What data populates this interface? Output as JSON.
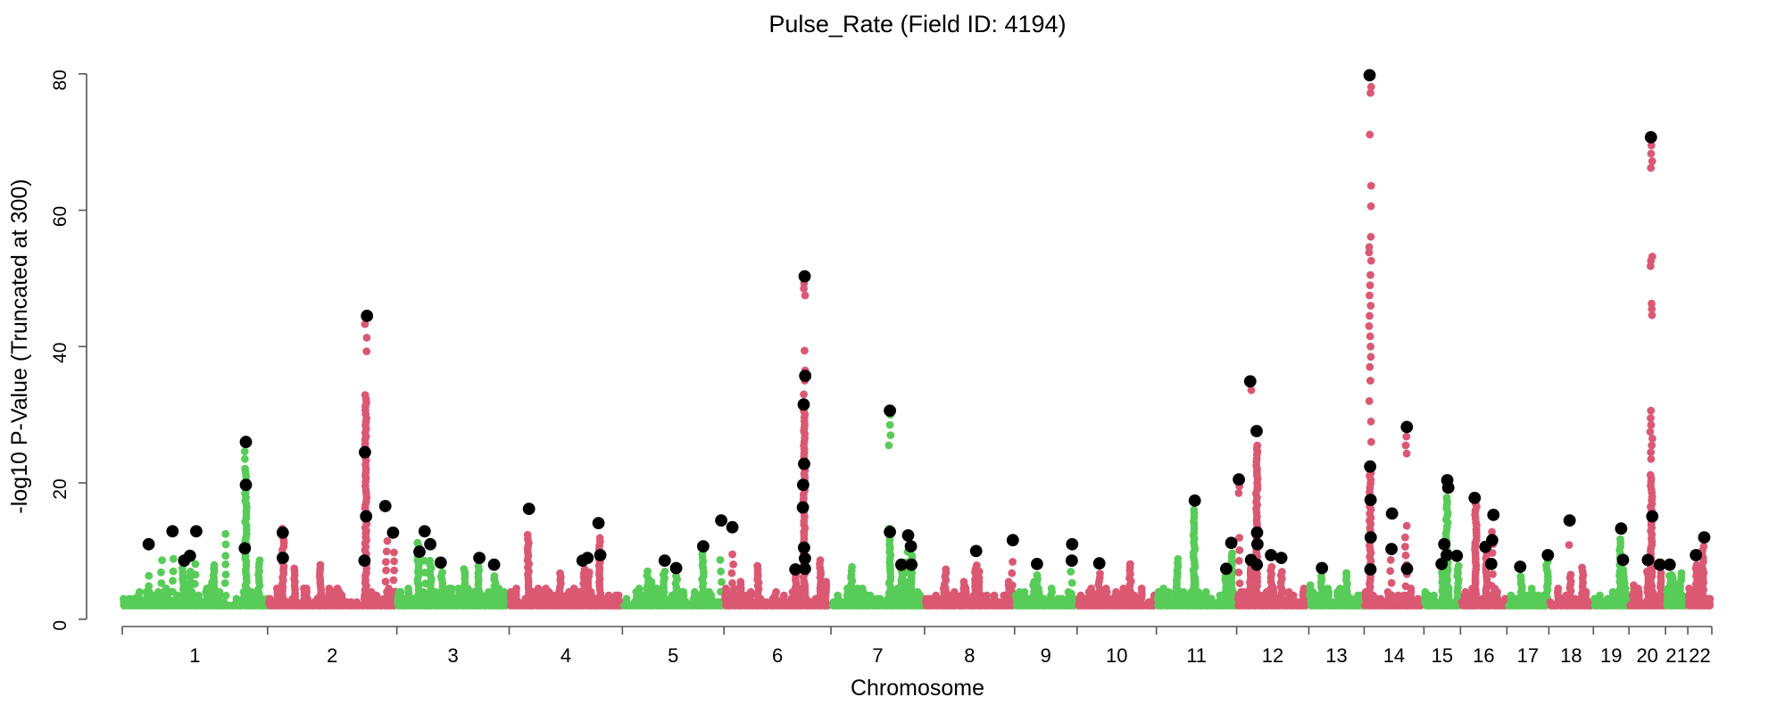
{
  "chart_data": {
    "type": "scatter",
    "variant": "manhattan",
    "title": "Pulse_Rate (Field ID: 4194)",
    "xlabel": "Chromosome",
    "ylabel": "-log10 P-Value (Truncated at 300)",
    "ylim": [
      0,
      82
    ],
    "y_ticks": [
      0,
      20,
      40,
      60,
      80
    ],
    "baseline_min": 2,
    "colors": {
      "odd_chromosome": "#58CC58",
      "even_chromosome": "#DB5873",
      "highlight": "#000000",
      "axis": "#555555"
    },
    "legend": "none",
    "grid": false,
    "chromosomes": [
      {
        "label": "1",
        "width_frac": 0.0914,
        "peaks": [
          {
            "f": 0.18,
            "c": 7.5,
            "d": "s",
            "b": [
              11.0
            ]
          },
          {
            "f": 0.27,
            "c": 10.0,
            "d": "s"
          },
          {
            "f": 0.35,
            "c": 10.5,
            "d": "s",
            "b": [
              12.9
            ]
          },
          {
            "f": 0.42,
            "c": 7.5,
            "b": [
              8.6
            ]
          },
          {
            "f": 0.47,
            "c": 7.0,
            "b": [
              9.3
            ]
          },
          {
            "f": 0.5,
            "c": 9.0,
            "d": "s",
            "b": [
              12.9
            ]
          },
          {
            "f": 0.63,
            "c": 8.0
          },
          {
            "f": 0.71,
            "c": 13.0,
            "d": "s"
          },
          {
            "f": 0.85,
            "c": 22.5,
            "e": [
              23.5,
              24.6
            ],
            "b": [
              26.0,
              19.7,
              10.4
            ]
          },
          {
            "f": 0.94,
            "c": 9.0
          }
        ]
      },
      {
        "label": "2",
        "width_frac": 0.0813,
        "peaks": [
          {
            "f": 0.12,
            "c": 13.6,
            "b": [
              12.7,
              9.0
            ]
          },
          {
            "f": 0.21,
            "c": 7.5
          },
          {
            "f": 0.41,
            "c": 8.0
          },
          {
            "f": 0.76,
            "c": 33.0,
            "e": [
              39.3,
              41.3,
              43.3
            ],
            "b": [
              44.5,
              24.5,
              15.1,
              8.6
            ]
          },
          {
            "f": 0.92,
            "c": 12.0,
            "d": "s",
            "b": [
              16.6
            ]
          },
          {
            "f": 0.98,
            "c": 10.0,
            "d": "s",
            "b": [
              12.7
            ]
          }
        ]
      },
      {
        "label": "3",
        "width_frac": 0.0707,
        "peaks": [
          {
            "f": 0.19,
            "c": 11.5,
            "b": [
              9.9
            ]
          },
          {
            "f": 0.25,
            "c": 10.0,
            "d": "s",
            "b": [
              12.9
            ]
          },
          {
            "f": 0.3,
            "c": 9.0,
            "b": [
              11.0
            ]
          },
          {
            "f": 0.4,
            "c": 7.0,
            "b": [
              8.3
            ]
          },
          {
            "f": 0.6,
            "c": 7.5
          },
          {
            "f": 0.73,
            "c": 8.0,
            "b": [
              9.0
            ]
          },
          {
            "f": 0.87,
            "c": 6.5,
            "b": [
              8.0
            ]
          }
        ]
      },
      {
        "label": "4",
        "width_frac": 0.0712,
        "peaks": [
          {
            "f": 0.17,
            "c": 12.5,
            "b": [
              16.2
            ]
          },
          {
            "f": 0.45,
            "c": 7.0
          },
          {
            "f": 0.66,
            "c": 7.5,
            "b": [
              8.6
            ]
          },
          {
            "f": 0.7,
            "c": 7.0,
            "b": [
              9.0
            ]
          },
          {
            "f": 0.8,
            "c": 12.0,
            "b": [
              14.1,
              9.4
            ]
          }
        ]
      },
      {
        "label": "5",
        "width_frac": 0.0639,
        "peaks": [
          {
            "f": 0.25,
            "c": 7.5
          },
          {
            "f": 0.41,
            "c": 7.5,
            "b": [
              8.6
            ]
          },
          {
            "f": 0.53,
            "c": 6.5,
            "b": [
              7.5
            ]
          },
          {
            "f": 0.79,
            "c": 11.0,
            "b": [
              10.7
            ]
          },
          {
            "f": 0.97,
            "c": 9.0,
            "d": "s",
            "b": [
              14.5
            ]
          }
        ]
      },
      {
        "label": "6",
        "width_frac": 0.0673,
        "peaks": [
          {
            "f": 0.08,
            "c": 10.0,
            "d": "s",
            "b": [
              13.5
            ]
          },
          {
            "f": 0.32,
            "c": 8.0
          },
          {
            "f": 0.67,
            "c": 6.5,
            "b": [
              7.3
            ]
          },
          {
            "f": 0.75,
            "c": 31.0,
            "e": [
              33.0,
              35.0,
              36.5,
              39.4,
              47.5,
              48.5,
              49.3
            ],
            "b": [
              50.3,
              35.7,
              31.5,
              22.8,
              19.7,
              16.4,
              10.5,
              8.9,
              7.4
            ]
          },
          {
            "f": 0.9,
            "c": 9.0
          }
        ]
      },
      {
        "label": "7",
        "width_frac": 0.0589,
        "peaks": [
          {
            "f": 0.22,
            "c": 8.0
          },
          {
            "f": 0.63,
            "c": 13.5,
            "e": [
              25.5,
              27.0,
              28.5,
              30.0
            ],
            "b": [
              30.6,
              12.8
            ]
          },
          {
            "f": 0.76,
            "c": 7.5,
            "b": [
              8.0
            ]
          },
          {
            "f": 0.81,
            "c": 10.5,
            "d": "s",
            "b": [
              12.3
            ]
          },
          {
            "f": 0.86,
            "c": 9.5,
            "b": [
              10.7,
              8.0
            ]
          }
        ]
      },
      {
        "label": "8",
        "width_frac": 0.0566,
        "peaks": [
          {
            "f": 0.23,
            "c": 7.5
          },
          {
            "f": 0.57,
            "c": 8.5,
            "b": [
              10.0
            ]
          },
          {
            "f": 0.97,
            "c": 9.0,
            "d": "s",
            "b": [
              11.6
            ]
          }
        ]
      },
      {
        "label": "9",
        "width_frac": 0.0393,
        "peaks": [
          {
            "f": 0.36,
            "c": 7.0,
            "b": [
              8.1
            ]
          },
          {
            "f": 0.91,
            "c": 9.5,
            "d": "s",
            "b": [
              11.0,
              8.6
            ]
          }
        ]
      },
      {
        "label": "10",
        "width_frac": 0.0499,
        "peaks": [
          {
            "f": 0.28,
            "c": 7.0,
            "b": [
              8.2
            ]
          },
          {
            "f": 0.67,
            "c": 8.5
          }
        ]
      },
      {
        "label": "11",
        "width_frac": 0.0505,
        "peaks": [
          {
            "f": 0.26,
            "c": 9.0
          },
          {
            "f": 0.47,
            "c": 16.5,
            "b": [
              17.4
            ]
          },
          {
            "f": 0.86,
            "c": 6.5,
            "b": [
              7.4
            ]
          },
          {
            "f": 0.94,
            "c": 10.0,
            "b": [
              11.2
            ]
          }
        ]
      },
      {
        "label": "12",
        "width_frac": 0.0454,
        "peaks": [
          {
            "f": 0.04,
            "c": 13.0,
            "d": "s",
            "e": [
              18.5,
              19.5
            ],
            "b": [
              20.5
            ]
          },
          {
            "f": 0.19,
            "c": 8.0,
            "e": [
              33.6
            ],
            "b": [
              34.9,
              8.7
            ]
          },
          {
            "f": 0.28,
            "c": 25.5,
            "b": [
              27.6,
              12.7,
              11.0,
              8.0
            ]
          },
          {
            "f": 0.48,
            "c": 8.0,
            "b": [
              9.4
            ]
          },
          {
            "f": 0.62,
            "c": 7.5,
            "b": [
              9.0
            ]
          }
        ]
      },
      {
        "label": "13",
        "width_frac": 0.0348,
        "peaks": [
          {
            "f": 0.23,
            "c": 6.5,
            "b": [
              7.5
            ]
          },
          {
            "f": 0.68,
            "c": 7.0
          }
        ]
      },
      {
        "label": "14",
        "width_frac": 0.0376,
        "peaks": [
          {
            "f": 0.1,
            "c": 22.0,
            "e": [
              26.0,
              29.0,
              32.0,
              35.0,
              37.0,
              38.5,
              40.0,
              41.5,
              43.0,
              44.5,
              46.0,
              47.5,
              49.0,
              50.5,
              52.6,
              53.8,
              54.6,
              56.1,
              60.6,
              63.6,
              71.1,
              77.2,
              78.1
            ],
            "b": [
              79.8,
              22.4,
              17.5,
              12.0,
              7.3
            ]
          },
          {
            "f": 0.45,
            "c": 9.0,
            "d": "s",
            "b": [
              15.5,
              10.3
            ]
          },
          {
            "f": 0.7,
            "c": 15.0,
            "d": "s",
            "e": [
              24.3,
              25.5,
              26.8
            ],
            "b": [
              28.2,
              7.4
            ]
          }
        ]
      },
      {
        "label": "15",
        "width_frac": 0.023,
        "peaks": [
          {
            "f": 0.51,
            "c": 7.0,
            "b": [
              8.1
            ]
          },
          {
            "f": 0.59,
            "c": 9.5,
            "b": [
              11.0
            ]
          },
          {
            "f": 0.63,
            "c": 18.0,
            "b": [
              20.4,
              19.3,
              9.4
            ]
          },
          {
            "f": 0.93,
            "c": 8.0,
            "b": [
              9.3
            ]
          }
        ]
      },
      {
        "label": "16",
        "width_frac": 0.0292,
        "peaks": [
          {
            "f": 0.33,
            "c": 17.0,
            "b": [
              17.8
            ]
          },
          {
            "f": 0.56,
            "c": 9.5,
            "b": [
              10.6
            ]
          },
          {
            "f": 0.69,
            "c": 13.5,
            "d": "s",
            "b": [
              15.3,
              11.6,
              8.1
            ]
          }
        ]
      },
      {
        "label": "17",
        "width_frac": 0.0264,
        "peaks": [
          {
            "f": 0.34,
            "c": 6.5,
            "b": [
              7.7
            ]
          },
          {
            "f": 0.96,
            "c": 9.0,
            "b": [
              9.4
            ]
          }
        ]
      },
      {
        "label": "18",
        "width_frac": 0.028,
        "peaks": [
          {
            "f": 0.48,
            "c": 7.0,
            "e": [
              10.9
            ],
            "b": [
              14.5
            ]
          },
          {
            "f": 0.76,
            "c": 8.0
          }
        ]
      },
      {
        "label": "19",
        "width_frac": 0.0224,
        "peaks": [
          {
            "f": 0.75,
            "c": 12.0,
            "b": [
              13.3
            ]
          },
          {
            "f": 0.85,
            "c": 7.5,
            "b": [
              8.7
            ]
          }
        ]
      },
      {
        "label": "20",
        "width_frac": 0.023,
        "peaks": [
          {
            "f": 0.51,
            "c": 7.0,
            "b": [
              8.7
            ]
          },
          {
            "f": 0.61,
            "c": 21.5,
            "e": [
              23.5,
              24.5,
              25.5,
              26.5,
              27.5,
              28.5,
              29.5,
              30.6,
              44.6,
              45.5,
              46.3,
              51.8,
              52.6,
              53.2,
              66.2,
              67.2,
              68.3,
              69.5
            ],
            "b": [
              70.7,
              15.1
            ]
          },
          {
            "f": 0.88,
            "c": 7.0,
            "b": [
              8.0
            ]
          }
        ]
      },
      {
        "label": "21",
        "width_frac": 0.014,
        "peaks": [
          {
            "f": 0.2,
            "c": 6.5,
            "b": [
              8.0
            ]
          },
          {
            "f": 0.68,
            "c": 7.0
          }
        ]
      },
      {
        "label": "22",
        "width_frac": 0.0151,
        "peaks": [
          {
            "f": 0.37,
            "c": 8.0,
            "b": [
              9.4
            ]
          },
          {
            "f": 0.63,
            "c": 11.0,
            "b": [
              12.0
            ]
          }
        ]
      }
    ]
  }
}
